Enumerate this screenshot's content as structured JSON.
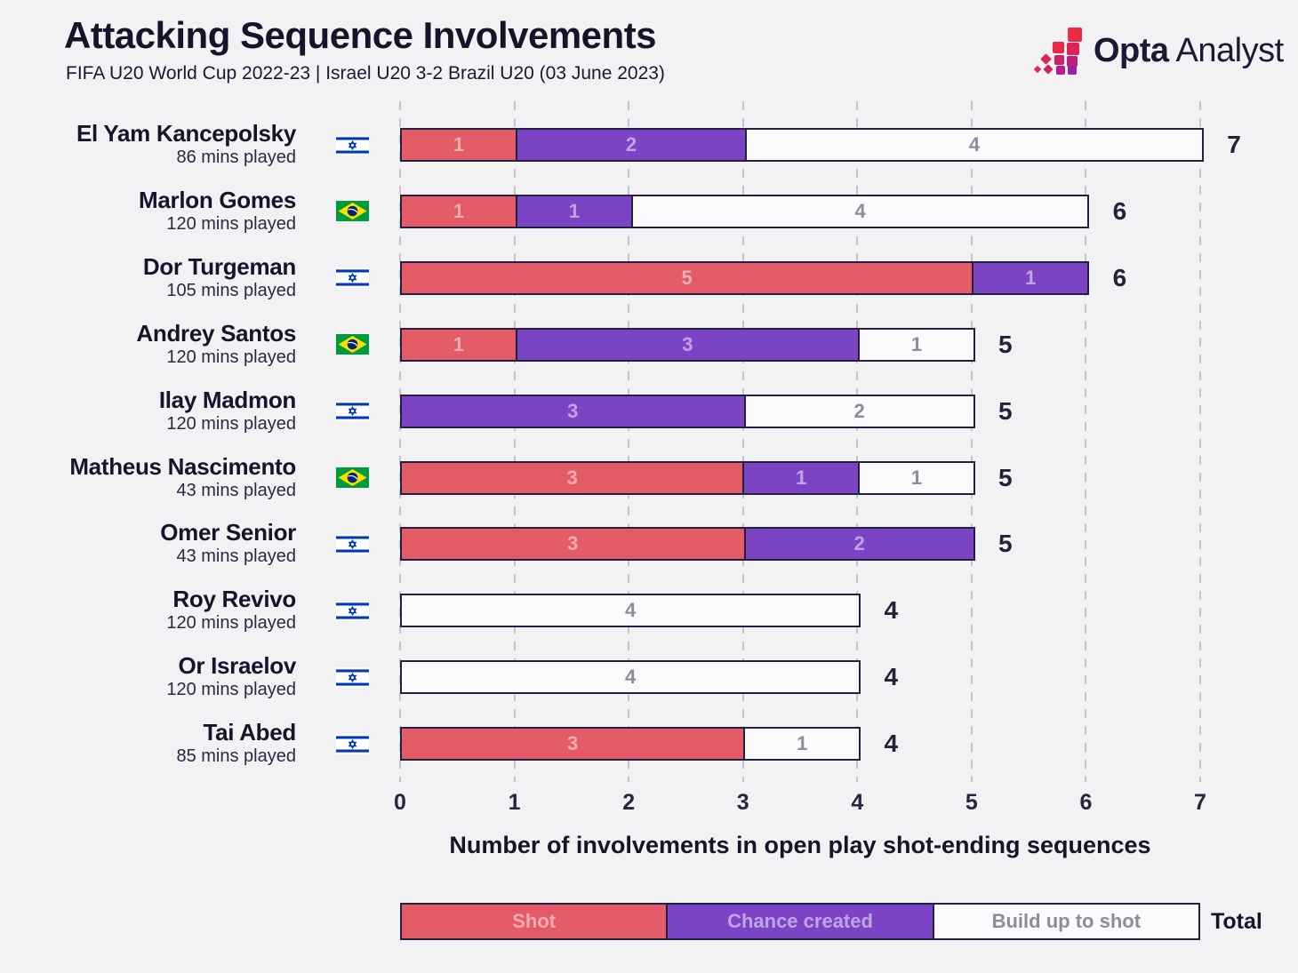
{
  "header": {
    "title": "Attacking Sequence Involvements",
    "subtitle": "FIFA U20 World Cup 2022-23 | Israel U20 3-2 Brazil U20 (03 June 2023)",
    "logo": {
      "brand_bold": "Opta",
      "brand_regular": "Analyst"
    }
  },
  "colors": {
    "background": "#f2f1f3",
    "shot": "#e25b66",
    "chance_created": "#7b44c5",
    "build_up_fill": "#fbfafc",
    "bar_border": "#262040",
    "gridline": "#c7c5cc",
    "text_dark": "#18122b",
    "israel_blue": "#0038b8",
    "brazil_green": "#009b3a",
    "brazil_yellow": "#fedf00",
    "brazil_blue": "#002776"
  },
  "chart_data": {
    "type": "bar",
    "orientation": "horizontal",
    "stacked": true,
    "title": "Attacking Sequence Involvements",
    "xlabel": "Number of involvements in open play shot-ending sequences",
    "xlim": [
      0,
      7
    ],
    "xticks": [
      0,
      1,
      2,
      3,
      4,
      5,
      6,
      7
    ],
    "grid": "dashed-vertical",
    "legend_position": "bottom",
    "legend": [
      {
        "key": "shot",
        "label": "Shot"
      },
      {
        "key": "chance_created",
        "label": "Chance created"
      },
      {
        "key": "build_up",
        "label": "Build up to shot"
      }
    ],
    "legend_total_label": "Total",
    "rows": [
      {
        "player": "El Yam Kancepolsky",
        "mins": "86 mins played",
        "flag": "israel",
        "shot": 1,
        "chance_created": 2,
        "build_up": 4,
        "total": 7
      },
      {
        "player": "Marlon Gomes",
        "mins": "120 mins played",
        "flag": "brazil",
        "shot": 1,
        "chance_created": 1,
        "build_up": 4,
        "total": 6
      },
      {
        "player": "Dor Turgeman",
        "mins": "105 mins played",
        "flag": "israel",
        "shot": 5,
        "chance_created": 1,
        "build_up": 0,
        "total": 6
      },
      {
        "player": "Andrey Santos",
        "mins": "120 mins played",
        "flag": "brazil",
        "shot": 1,
        "chance_created": 3,
        "build_up": 1,
        "total": 5
      },
      {
        "player": "Ilay Madmon",
        "mins": "120 mins played",
        "flag": "israel",
        "shot": 0,
        "chance_created": 3,
        "build_up": 2,
        "total": 5
      },
      {
        "player": "Matheus Nascimento",
        "mins": "43 mins played",
        "flag": "brazil",
        "shot": 3,
        "chance_created": 1,
        "build_up": 1,
        "total": 5
      },
      {
        "player": "Omer Senior",
        "mins": "43 mins played",
        "flag": "israel",
        "shot": 3,
        "chance_created": 2,
        "build_up": 0,
        "total": 5
      },
      {
        "player": "Roy Revivo",
        "mins": "120 mins played",
        "flag": "israel",
        "shot": 0,
        "chance_created": 0,
        "build_up": 4,
        "total": 4
      },
      {
        "player": "Or Israelov",
        "mins": "120 mins played",
        "flag": "israel",
        "shot": 0,
        "chance_created": 0,
        "build_up": 4,
        "total": 4
      },
      {
        "player": "Tai Abed",
        "mins": "85 mins played",
        "flag": "israel",
        "shot": 3,
        "chance_created": 0,
        "build_up": 1,
        "total": 4
      }
    ]
  }
}
